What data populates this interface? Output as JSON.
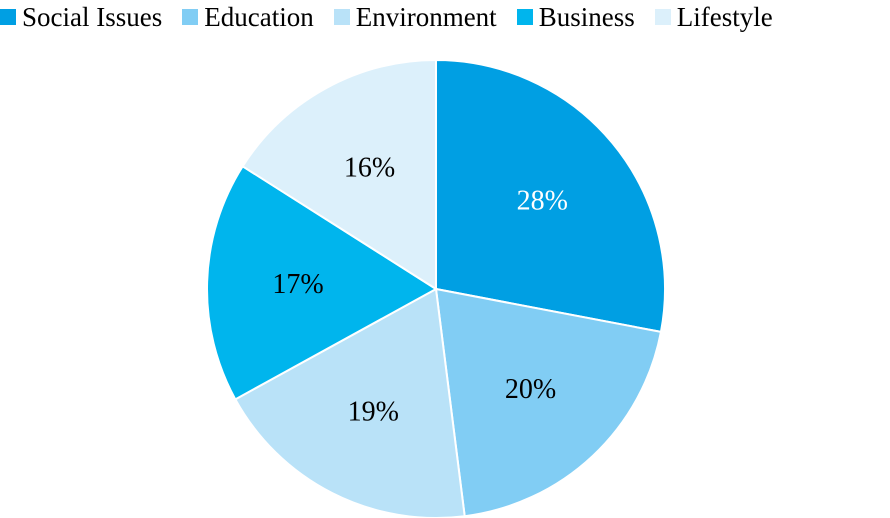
{
  "chart_data": {
    "type": "pie",
    "title": "",
    "legend": "top",
    "start_angle": 0,
    "direction": "clockwise",
    "slices": [
      {
        "label": "Social Issues",
        "value": 28,
        "display": "28%",
        "color": "#009fe3",
        "text_color": "#ffffff"
      },
      {
        "label": "Education",
        "value": 20,
        "display": "20%",
        "color": "#81cdf4",
        "text_color": "#000000"
      },
      {
        "label": "Environment",
        "value": 19,
        "display": "19%",
        "color": "#b9e2f8",
        "text_color": "#000000"
      },
      {
        "label": "Business",
        "value": 17,
        "display": "17%",
        "color": "#00b5ed",
        "text_color": "#000000"
      },
      {
        "label": "Lifestyle",
        "value": 16,
        "display": "16%",
        "color": "#dcf0fb",
        "text_color": "#000000"
      }
    ]
  }
}
